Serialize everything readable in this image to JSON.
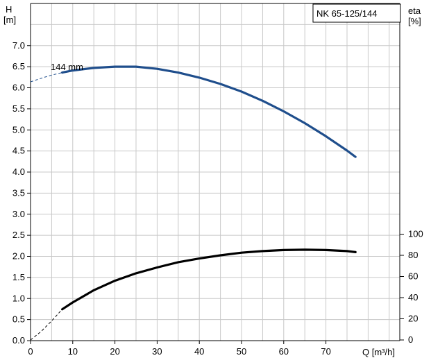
{
  "chart_data": {
    "type": "line",
    "model_label": "NK 65-125/144",
    "left_axis": {
      "label_line1": "H",
      "label_line2": "[m]",
      "ylim": [
        0,
        7.5
      ],
      "ticks": [
        "0.0",
        "0.5",
        "1.0",
        "1.5",
        "2.0",
        "2.5",
        "3.0",
        "3.5",
        "4.0",
        "4.5",
        "5.0",
        "5.5",
        "6.0",
        "6.5",
        "7.0"
      ]
    },
    "right_axis": {
      "label_line1": "eta",
      "label_line2": "[%]",
      "ticks": [
        "0",
        "20",
        "40",
        "60",
        "80",
        "100"
      ]
    },
    "x_axis": {
      "label": "Q [m³/h]",
      "xlim": [
        0,
        80
      ],
      "ticks": [
        "0",
        "10",
        "20",
        "30",
        "40",
        "50",
        "60",
        "70"
      ]
    },
    "series": [
      {
        "name": "144 mm",
        "axis": "left",
        "color": "#1f4e8c",
        "points": [
          [
            7.5,
            6.36
          ],
          [
            10,
            6.41
          ],
          [
            15,
            6.47
          ],
          [
            20,
            6.5
          ],
          [
            25,
            6.5
          ],
          [
            30,
            6.45
          ],
          [
            35,
            6.36
          ],
          [
            40,
            6.24
          ],
          [
            45,
            6.09
          ],
          [
            50,
            5.91
          ],
          [
            55,
            5.69
          ],
          [
            60,
            5.44
          ],
          [
            65,
            5.16
          ],
          [
            70,
            4.85
          ],
          [
            75,
            4.51
          ],
          [
            77,
            4.36
          ]
        ],
        "extrapolated": [
          [
            0,
            6.14
          ],
          [
            3,
            6.24
          ],
          [
            5,
            6.3
          ],
          [
            7.5,
            6.36
          ]
        ]
      },
      {
        "name": "",
        "axis": "right",
        "color": "#000000",
        "points": [
          [
            7.5,
            29.0
          ],
          [
            10,
            35.5
          ],
          [
            15,
            47.0
          ],
          [
            20,
            56.0
          ],
          [
            25,
            63.0
          ],
          [
            30,
            68.5
          ],
          [
            35,
            73.5
          ],
          [
            40,
            77.0
          ],
          [
            45,
            80.0
          ],
          [
            50,
            82.5
          ],
          [
            55,
            84.0
          ],
          [
            60,
            85.0
          ],
          [
            65,
            85.3
          ],
          [
            70,
            85.0
          ],
          [
            75,
            84.0
          ],
          [
            77,
            83.0
          ]
        ],
        "extrapolated": [
          [
            0,
            0
          ],
          [
            2.5,
            8.0
          ],
          [
            5,
            18.0
          ],
          [
            7.5,
            29.0
          ]
        ]
      }
    ]
  }
}
